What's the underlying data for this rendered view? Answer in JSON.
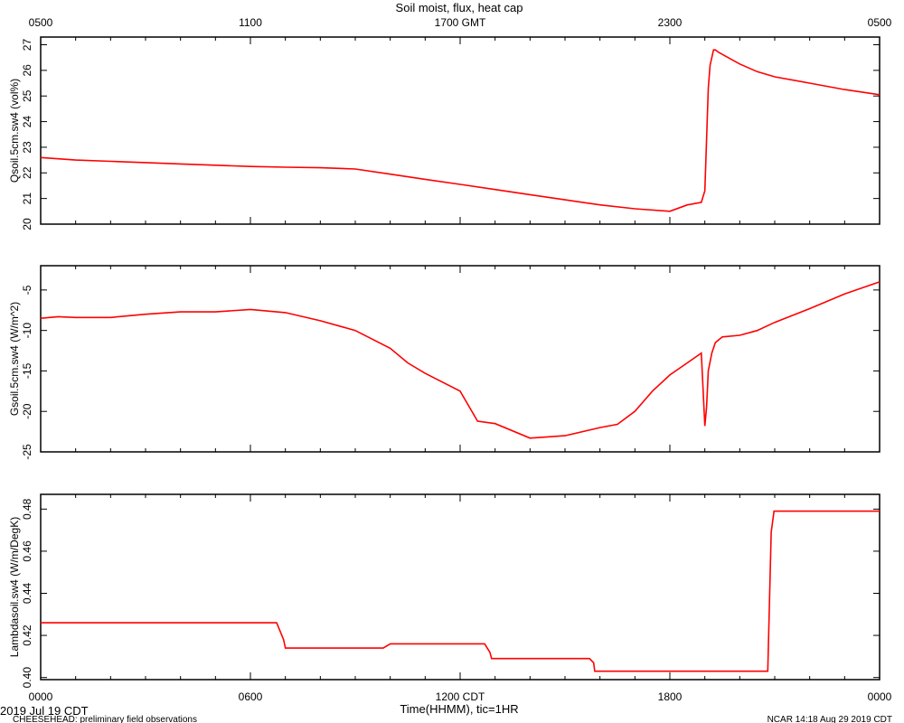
{
  "title": "Soil moist, flux, heat cap",
  "top_axis": {
    "ticks": [
      "0500",
      "1100",
      "1700 GMT",
      "2300",
      "0500"
    ]
  },
  "bottom_axis": {
    "ticks": [
      "0000",
      "0600",
      "1200 CDT",
      "1800",
      "0000"
    ],
    "label": "Time(HHMM), tic=1HR",
    "date_label": "2019 Jul 19 CDT"
  },
  "footer": {
    "left": "CHEESEHEAD: preliminary field observations",
    "right": "NCAR 14:18 Aug 29 2019 CDT"
  },
  "colors": {
    "series": "#ff0000",
    "axis": "#000000"
  },
  "chart_data": [
    {
      "type": "line",
      "ylabel": "Qsoil.5cm.sw4 (vol%)",
      "ylim": [
        20,
        27.3
      ],
      "yticks": [
        "20",
        "21",
        "22",
        "23",
        "24",
        "25",
        "26",
        "27"
      ],
      "xlim_hours": [
        0,
        24
      ],
      "x": [
        0,
        0.5,
        1,
        2,
        3,
        4,
        5,
        6,
        7,
        8,
        9,
        10,
        11,
        12,
        13,
        14,
        15,
        16,
        17,
        18,
        18.5,
        18.9,
        19.0,
        19.1,
        19.15,
        19.25,
        19.3,
        19.4,
        19.6,
        20,
        20.5,
        21,
        22,
        23,
        24
      ],
      "values": [
        22.6,
        22.55,
        22.5,
        22.45,
        22.4,
        22.35,
        22.3,
        22.25,
        22.22,
        22.2,
        22.15,
        21.95,
        21.75,
        21.55,
        21.35,
        21.15,
        20.95,
        20.75,
        20.6,
        20.5,
        20.75,
        20.85,
        21.3,
        25.3,
        26.2,
        26.8,
        26.8,
        26.7,
        26.55,
        26.25,
        25.95,
        25.75,
        25.5,
        25.25,
        25.05
      ]
    },
    {
      "type": "line",
      "ylabel": "Gsoil.5cm.sw4 (W/m^2)",
      "ylim": [
        -25,
        -2
      ],
      "yticks": [
        "-5",
        "-10",
        "-15",
        "-20",
        "-25"
      ],
      "xlim_hours": [
        0,
        24
      ],
      "x": [
        0,
        0.5,
        1,
        2,
        3,
        4,
        5,
        6,
        7,
        8,
        9,
        10,
        10.5,
        11,
        12,
        12.5,
        13,
        14,
        15,
        16,
        16.5,
        17,
        17.5,
        18,
        18.5,
        18.9,
        19.0,
        19.05,
        19.1,
        19.2,
        19.3,
        19.5,
        20,
        20.5,
        21,
        22,
        23,
        24
      ],
      "values": [
        -8.5,
        -8.3,
        -8.4,
        -8.4,
        -8.0,
        -7.7,
        -7.7,
        -7.4,
        -7.8,
        -8.8,
        -10,
        -12.2,
        -14,
        -15.3,
        -17.5,
        -21.2,
        -21.5,
        -23.3,
        -23.0,
        -22.0,
        -21.6,
        -20.0,
        -17.5,
        -15.5,
        -14.0,
        -12.8,
        -21.8,
        -19.5,
        -15.0,
        -12.8,
        -11.5,
        -10.8,
        -10.6,
        -10.0,
        -9.0,
        -7.3,
        -5.5,
        -4.0
      ]
    },
    {
      "type": "line",
      "ylabel": "Lambdasoil.sw4 (W/m/DegK)",
      "ylim": [
        0.399,
        0.487
      ],
      "yticks": [
        "0.40",
        "0.42",
        "0.44",
        "0.46",
        "0.48"
      ],
      "xlim_hours": [
        0,
        24
      ],
      "x": [
        0,
        6.75,
        6.95,
        7.0,
        9.8,
        10.0,
        12.7,
        12.85,
        12.9,
        15.7,
        15.82,
        15.85,
        20.8,
        20.9,
        20.98,
        24
      ],
      "values": [
        0.426,
        0.426,
        0.418,
        0.414,
        0.414,
        0.416,
        0.416,
        0.412,
        0.409,
        0.409,
        0.407,
        0.403,
        0.403,
        0.469,
        0.479,
        0.479
      ]
    }
  ]
}
